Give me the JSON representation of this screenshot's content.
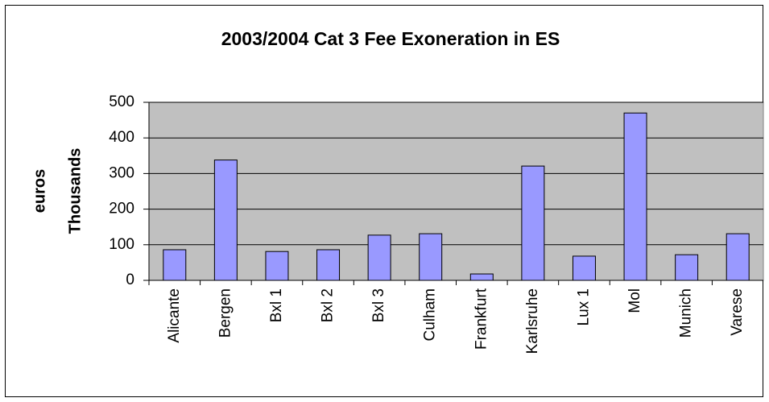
{
  "chart_data": {
    "type": "bar",
    "title": "2003/2004 Cat 3 Fee Exoneration in ES",
    "ylabel": "euros",
    "yunit": "Thousands",
    "categories": [
      "Alicante",
      "Bergen",
      "Bxl 1",
      "Bxl 2",
      "Bxl 3",
      "Culham",
      "Frankfurt",
      "Karlsruhe",
      "Lux 1",
      "Mol",
      "Munich",
      "Varese"
    ],
    "values": [
      86,
      338,
      81,
      86,
      127,
      131,
      18,
      321,
      68,
      470,
      72,
      131
    ],
    "color": "#9999ff",
    "ylim": [
      0,
      500
    ],
    "yticks": [
      0,
      100,
      200,
      300,
      400,
      500
    ],
    "grid": true
  }
}
